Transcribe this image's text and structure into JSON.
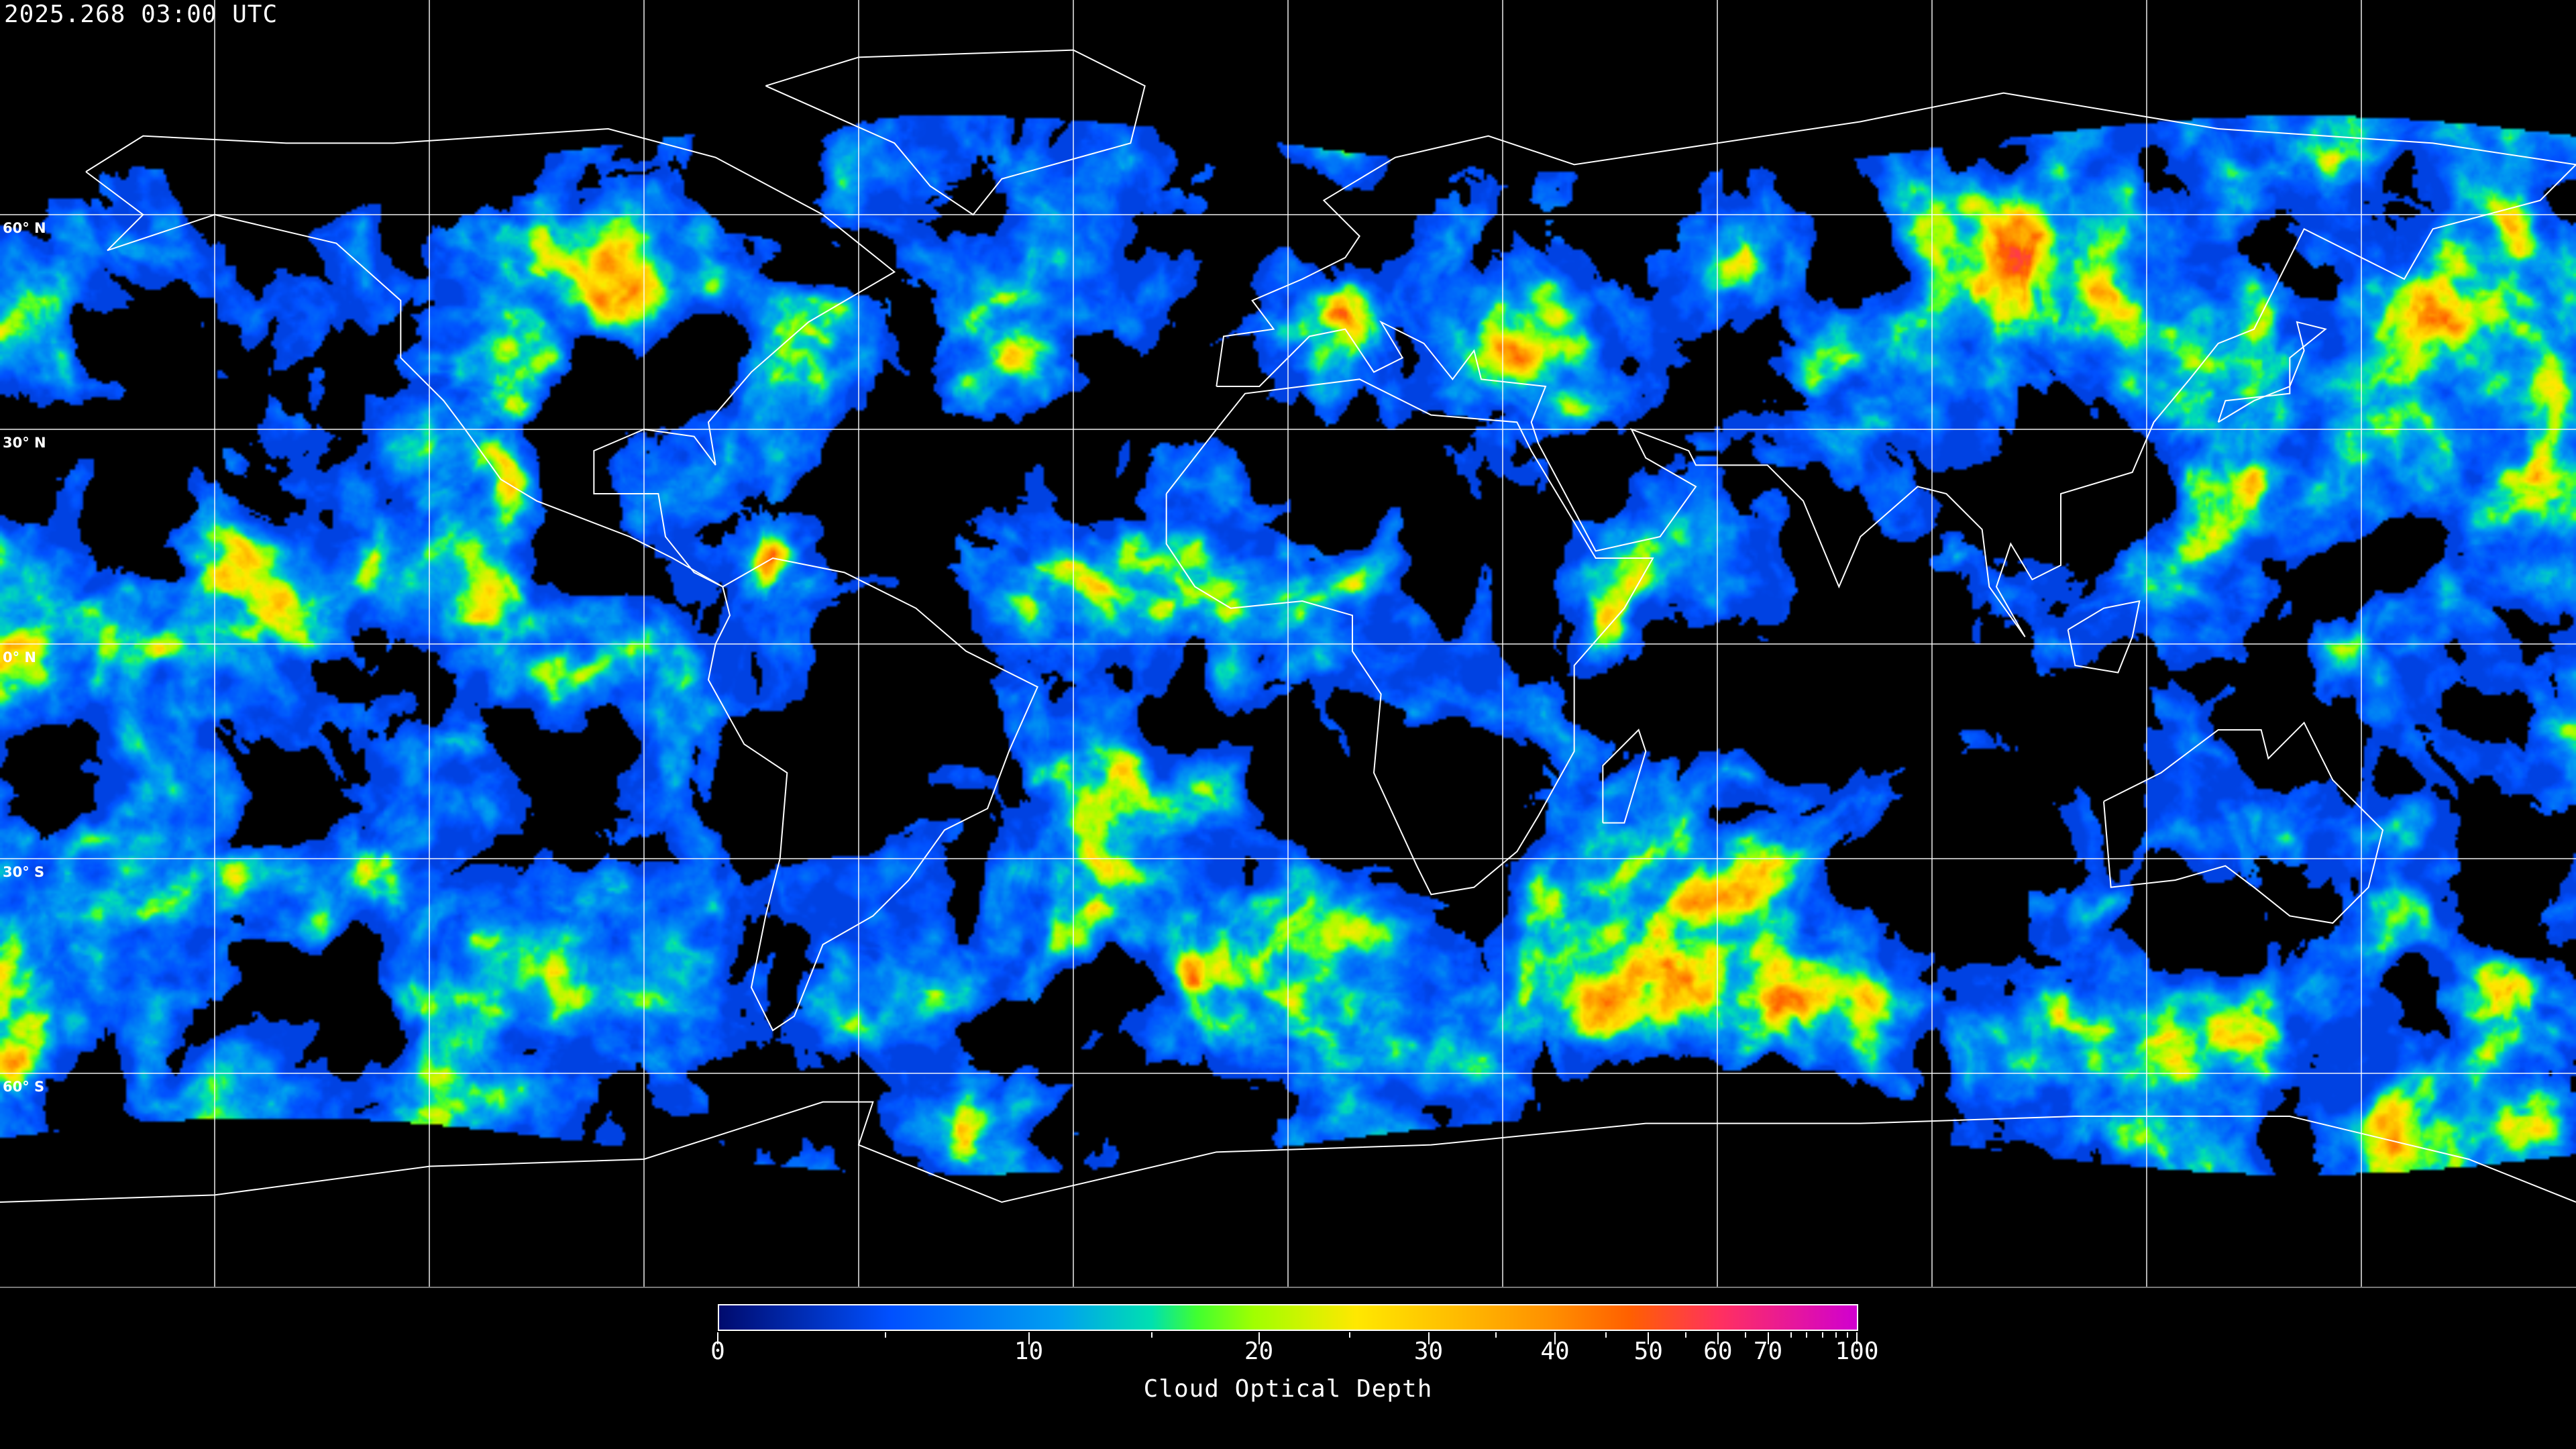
{
  "header": {
    "timestamp": "2025.268 03:00 UTC"
  },
  "map": {
    "projection": "equirectangular",
    "grid_spacing_deg": 30,
    "latitude_labels": [
      "60° N",
      "30° N",
      "0° N",
      "30° S",
      "60° S"
    ],
    "latitude_values": [
      60,
      30,
      0,
      -30,
      -60
    ],
    "coastline_color": "#ffffff",
    "grid_color": "#ffffff",
    "no_data_color": "#000000"
  },
  "colorbar": {
    "title": "Cloud Optical Depth",
    "min": 0,
    "max": 100,
    "major_ticks": [
      0,
      10,
      20,
      30,
      40,
      50,
      60,
      70,
      100
    ],
    "major_tick_labels": [
      "0",
      "10",
      "20",
      "30",
      "40",
      "50",
      "60",
      "70",
      "100"
    ],
    "minor_ticks": [
      5,
      15,
      25,
      35,
      45,
      55,
      65,
      75,
      80,
      85,
      90,
      95
    ],
    "colors": [
      "#000b6e",
      "#0050ff",
      "#00a0f0",
      "#00e0b0",
      "#40ff30",
      "#a0ff00",
      "#ffe800",
      "#ffc000",
      "#ff9000",
      "#ff6000",
      "#ff3060",
      "#d000d0"
    ]
  }
}
